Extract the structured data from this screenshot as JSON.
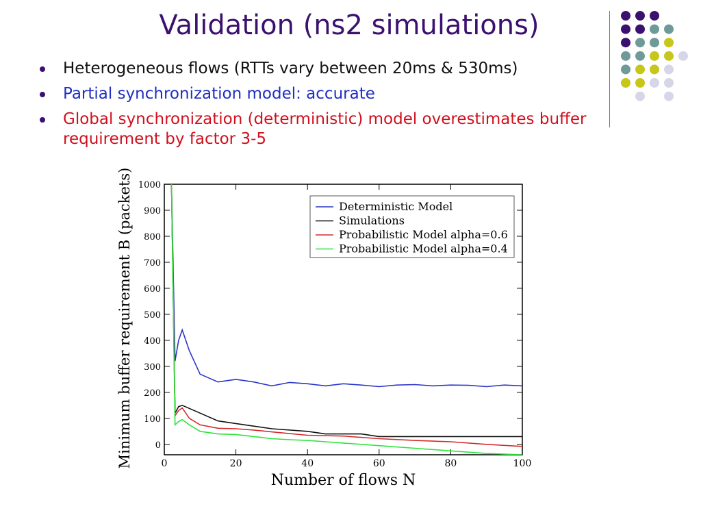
{
  "slide": {
    "title": "Validation (ns2 simulations)",
    "bullets": [
      {
        "text": "Heterogeneous flows (RTTs vary between 20ms & 530ms)",
        "color": "#111111"
      },
      {
        "text": "Partial synchronization model: accurate",
        "color": "#1f2fc4"
      },
      {
        "text": "Global synchronization (deterministic) model overestimates buffer requirement by factor 3-5",
        "color": "#d0101e"
      }
    ]
  },
  "decor": {
    "dot_colors": [
      "#3b1170",
      "#6e9a98",
      "#c7c61a",
      "#d6d6e8"
    ]
  },
  "chart_data": {
    "type": "line",
    "xlabel": "Number of flows N",
    "ylabel": "Minimum buffer requirement B (packets)",
    "xlim": [
      0,
      100
    ],
    "ylim": [
      -40,
      1000
    ],
    "xticks": [
      0,
      20,
      40,
      60,
      80,
      100
    ],
    "yticks": [
      0,
      100,
      200,
      300,
      400,
      500,
      600,
      700,
      800,
      900,
      1000
    ],
    "legend_position": "top-right",
    "series": [
      {
        "name": "Deterministic Model",
        "color": "#2a35c9",
        "x": [
          2,
          3,
          4,
          5,
          7,
          10,
          15,
          20,
          25,
          30,
          35,
          40,
          45,
          50,
          55,
          60,
          65,
          70,
          75,
          80,
          85,
          90,
          95,
          100
        ],
        "y": [
          1000,
          320,
          400,
          440,
          360,
          270,
          240,
          250,
          240,
          225,
          238,
          233,
          225,
          233,
          228,
          222,
          228,
          230,
          225,
          228,
          227,
          222,
          228,
          225
        ]
      },
      {
        "name": "Simulations",
        "color": "#111111",
        "x": [
          2,
          3,
          4,
          5,
          10,
          15,
          20,
          30,
          40,
          45,
          55,
          60,
          70,
          80,
          90,
          100
        ],
        "y": [
          1000,
          120,
          145,
          150,
          120,
          90,
          80,
          60,
          50,
          40,
          40,
          30,
          30,
          30,
          30,
          30
        ]
      },
      {
        "name": "Probabilistic Model alpha=0.6",
        "color": "#d42a2a",
        "x": [
          2,
          3,
          4,
          5,
          7,
          10,
          15,
          20,
          25,
          30,
          40,
          50,
          60,
          70,
          80,
          90,
          100
        ],
        "y": [
          1000,
          110,
          130,
          140,
          100,
          75,
          62,
          60,
          55,
          48,
          35,
          32,
          22,
          15,
          10,
          0,
          -8
        ]
      },
      {
        "name": "Probabilistic Model alpha=0.4",
        "color": "#2ee33a",
        "x": [
          2,
          3,
          4,
          5,
          7,
          10,
          15,
          20,
          25,
          30,
          35,
          40,
          45,
          50,
          60,
          70,
          80,
          90,
          100
        ],
        "y": [
          1000,
          75,
          88,
          95,
          75,
          50,
          40,
          38,
          30,
          22,
          18,
          15,
          10,
          5,
          -5,
          -15,
          -25,
          -35,
          -40
        ]
      }
    ]
  }
}
